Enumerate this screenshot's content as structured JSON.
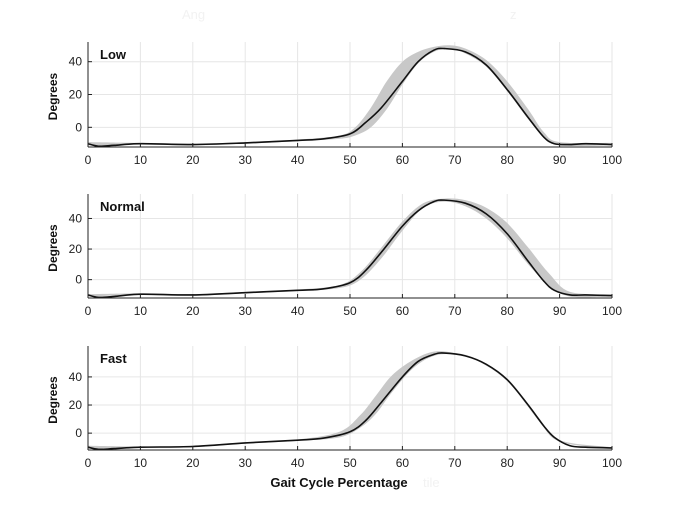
{
  "figure": {
    "faint_header_left": "Ang",
    "faint_header_right": "z",
    "faint_footer": "tile",
    "shared_xlabel": "Gait Cycle Percentage"
  },
  "chart_data": [
    {
      "type": "line",
      "annotation": "Low",
      "ylabel": "Degrees",
      "xlim": [
        0,
        100
      ],
      "ylim": [
        -12,
        52
      ],
      "xticks": [
        0,
        10,
        20,
        30,
        40,
        50,
        60,
        70,
        80,
        90,
        100
      ],
      "yticks": [
        0,
        20,
        40
      ],
      "grid": true,
      "series": [
        {
          "role": "mean",
          "color": "#111111",
          "x": [
            0,
            2,
            5,
            10,
            20,
            30,
            40,
            45,
            50,
            53,
            56,
            60,
            63,
            66,
            68,
            72,
            76,
            80,
            84,
            87,
            89,
            92,
            95,
            100
          ],
          "y": [
            -10,
            -11.5,
            -11,
            -10,
            -10.5,
            -9.5,
            -8,
            -7,
            -4,
            3,
            12,
            28,
            40,
            47,
            48,
            46,
            38,
            23,
            6,
            -6,
            -10,
            -10.5,
            -10,
            -10.5
          ]
        },
        {
          "role": "band",
          "color": "#c8c8c8",
          "x": [
            0,
            10,
            20,
            30,
            40,
            48,
            51,
            54,
            57,
            60,
            63,
            66,
            69,
            72,
            76,
            80,
            84,
            87,
            90,
            100
          ],
          "y_low": [
            -11,
            -10.5,
            -11,
            -10,
            -8.5,
            -7,
            -5,
            0,
            11,
            26,
            39,
            46,
            48,
            45,
            37,
            22,
            5,
            -6,
            -11,
            -11
          ],
          "y_high": [
            -9,
            -9.5,
            -10,
            -9,
            -7.5,
            -5,
            0,
            12,
            28,
            40,
            46,
            49,
            50,
            48,
            41,
            28,
            11,
            -3,
            -9,
            -9.5
          ]
        }
      ]
    },
    {
      "type": "line",
      "annotation": "Normal",
      "ylabel": "Degrees",
      "xlim": [
        0,
        100
      ],
      "ylim": [
        -12,
        56
      ],
      "xticks": [
        0,
        10,
        20,
        30,
        40,
        50,
        60,
        70,
        80,
        90,
        100
      ],
      "yticks": [
        0,
        20,
        40
      ],
      "grid": true,
      "series": [
        {
          "role": "mean",
          "color": "#111111",
          "x": [
            0,
            2,
            5,
            10,
            20,
            30,
            40,
            45,
            50,
            53,
            56,
            60,
            63,
            66,
            68,
            72,
            76,
            80,
            84,
            87,
            89,
            92,
            95,
            100
          ],
          "y": [
            -10,
            -11.5,
            -11,
            -9.5,
            -10,
            -8.5,
            -7,
            -6,
            -2,
            6,
            18,
            35,
            45,
            51,
            52,
            50,
            43,
            30,
            12,
            -1,
            -7,
            -10,
            -10,
            -10.5
          ]
        },
        {
          "role": "band",
          "color": "#c8c8c8",
          "x": [
            0,
            10,
            20,
            30,
            40,
            48,
            52,
            56,
            60,
            64,
            68,
            72,
            76,
            80,
            84,
            88,
            92,
            100
          ],
          "y_low": [
            -11,
            -10,
            -10.5,
            -9,
            -7.5,
            -5.5,
            0,
            14,
            32,
            47,
            51,
            48,
            40,
            27,
            10,
            -4,
            -11,
            -11
          ],
          "y_high": [
            -9.5,
            -9,
            -9.5,
            -8,
            -6.5,
            -3.5,
            5,
            21,
            38,
            50,
            53,
            52,
            47,
            37,
            21,
            4,
            -8,
            -9.5
          ]
        }
      ]
    },
    {
      "type": "line",
      "annotation": "Fast",
      "ylabel": "Degrees",
      "xlim": [
        0,
        100
      ],
      "ylim": [
        -12,
        62
      ],
      "xticks": [
        0,
        10,
        20,
        30,
        40,
        50,
        60,
        70,
        80,
        90,
        100
      ],
      "yticks": [
        0,
        20,
        40
      ],
      "grid": true,
      "series": [
        {
          "role": "mean",
          "color": "#111111",
          "x": [
            0,
            2,
            5,
            10,
            20,
            30,
            40,
            45,
            50,
            53,
            56,
            60,
            63,
            66,
            68,
            72,
            76,
            80,
            84,
            87,
            89,
            92,
            95,
            100
          ],
          "y": [
            -10,
            -11.5,
            -11,
            -10,
            -9.5,
            -7,
            -5,
            -3.5,
            1,
            9,
            22,
            40,
            51,
            56,
            57,
            55,
            49,
            38,
            20,
            5,
            -3,
            -9,
            -10,
            -10.5
          ]
        },
        {
          "role": "band",
          "color": "#c8c8c8",
          "x": [
            0,
            10,
            20,
            30,
            40,
            48,
            52,
            55,
            58,
            62,
            66,
            70,
            74,
            80,
            86,
            90,
            100
          ],
          "y_low": [
            -11,
            -10.5,
            -10,
            -7.5,
            -5.5,
            -3,
            4,
            14,
            29,
            46,
            55,
            56,
            52,
            37,
            9,
            -6,
            -11
          ],
          "y_high": [
            -9,
            -9.5,
            -9,
            -6.5,
            -4.5,
            1,
            13,
            27,
            41,
            52,
            58,
            57,
            53,
            39,
            11,
            -5,
            -10
          ]
        }
      ]
    }
  ]
}
